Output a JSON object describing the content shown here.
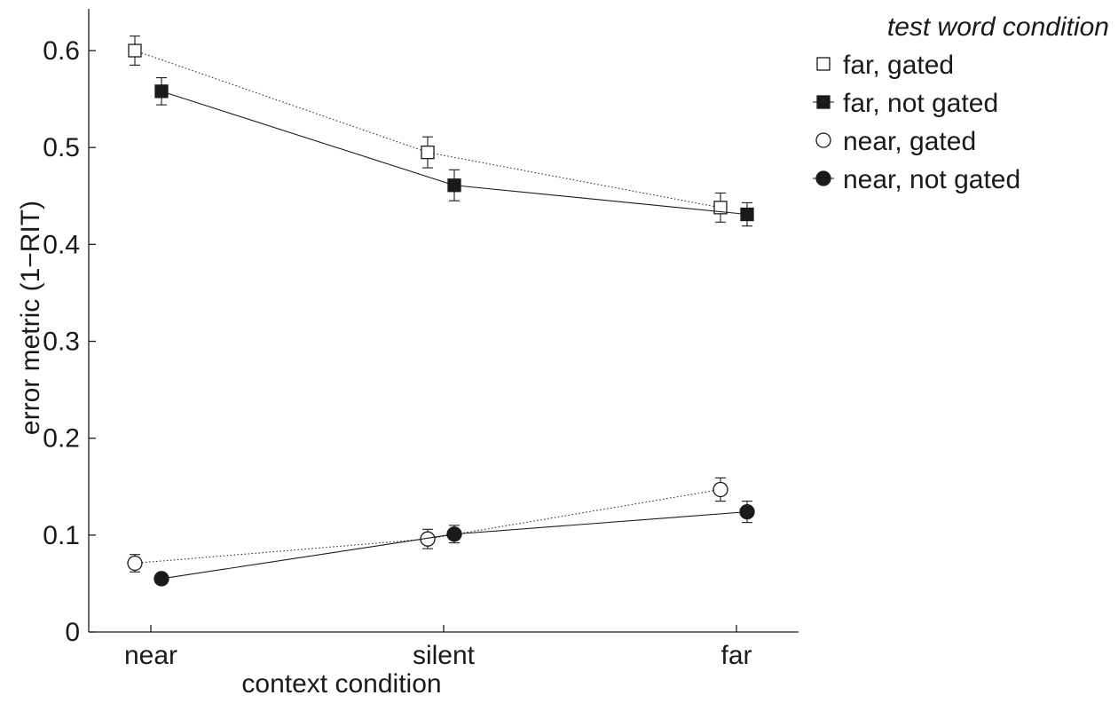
{
  "chart_data": {
    "type": "line",
    "title": "",
    "xlabel": "context condition",
    "ylabel": "error metric (1−RIT)",
    "categories": [
      "near",
      "silent",
      "far"
    ],
    "ylim": [
      0,
      0.65
    ],
    "yticks": [
      0,
      0.1,
      0.2,
      0.3,
      0.4,
      0.5,
      0.6
    ],
    "ytick_labels": [
      "0",
      "0.1",
      "0.2",
      "0.3",
      "0.4",
      "0.5",
      "0.6"
    ],
    "grid": false,
    "legend": {
      "title": "test word condition",
      "placement": "top-right outside"
    },
    "series": [
      {
        "name": "far, gated",
        "marker": "square",
        "fill": "open",
        "line": "dotted",
        "values": [
          0.6,
          0.495,
          0.438
        ],
        "error": [
          0.015,
          0.016,
          0.015
        ]
      },
      {
        "name": "far, not gated",
        "marker": "square",
        "fill": "filled",
        "line": "solid",
        "values": [
          0.558,
          0.461,
          0.431
        ],
        "error": [
          0.014,
          0.016,
          0.012
        ]
      },
      {
        "name": "near, gated",
        "marker": "circle",
        "fill": "open",
        "line": "dotted",
        "values": [
          0.071,
          0.096,
          0.147
        ],
        "error": [
          0.009,
          0.01,
          0.012
        ]
      },
      {
        "name": "near, not gated",
        "marker": "circle",
        "fill": "filled",
        "line": "solid",
        "values": [
          0.055,
          0.101,
          0.124
        ],
        "error": [
          0.004,
          0.009,
          0.011
        ]
      }
    ]
  }
}
